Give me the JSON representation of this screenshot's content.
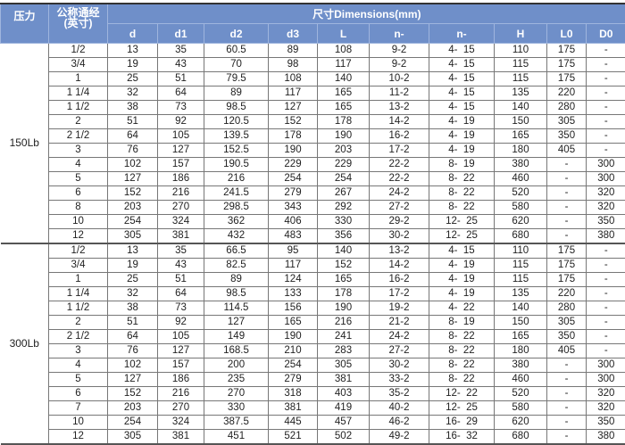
{
  "header": {
    "pressure": "压力",
    "nominal_line1": "公称通经",
    "nominal_line2": "(英寸)",
    "dimensions": "尺寸Dimensions(mm)",
    "columns": [
      "d",
      "d1",
      "d2",
      "d3",
      "L",
      "n-",
      "n-",
      "H",
      "L0",
      "D0"
    ]
  },
  "groups": [
    {
      "pressure": "150Lb",
      "rows": [
        [
          "1/2",
          "13",
          "35",
          "60.5",
          "89",
          "108",
          "9-2",
          "4-  15",
          "110",
          "175",
          "-"
        ],
        [
          "3/4",
          "19",
          "43",
          "70",
          "98",
          "117",
          "9-2",
          "4-  15",
          "115",
          "175",
          "-"
        ],
        [
          "1",
          "25",
          "51",
          "79.5",
          "108",
          "140",
          "10-2",
          "4-  15",
          "115",
          "175",
          "-"
        ],
        [
          "1 1/4",
          "32",
          "64",
          "89",
          "117",
          "165",
          "11-2",
          "4-  15",
          "135",
          "220",
          "-"
        ],
        [
          "1 1/2",
          "38",
          "73",
          "98.5",
          "127",
          "165",
          "13-2",
          "4-  15",
          "140",
          "280",
          "-"
        ],
        [
          "2",
          "51",
          "92",
          "120.5",
          "152",
          "178",
          "14-2",
          "4-  19",
          "150",
          "305",
          "-"
        ],
        [
          "2 1/2",
          "64",
          "105",
          "139.5",
          "178",
          "190",
          "16-2",
          "4-  19",
          "165",
          "350",
          "-"
        ],
        [
          "3",
          "76",
          "127",
          "152.5",
          "190",
          "203",
          "17-2",
          "4-  19",
          "180",
          "405",
          "-"
        ],
        [
          "4",
          "102",
          "157",
          "190.5",
          "229",
          "229",
          "22-2",
          "8-  19",
          "380",
          "-",
          "300"
        ],
        [
          "5",
          "127",
          "186",
          "216",
          "254",
          "254",
          "22-2",
          "8-  22",
          "460",
          "-",
          "300"
        ],
        [
          "6",
          "152",
          "216",
          "241.5",
          "279",
          "267",
          "24-2",
          "8-  22",
          "520",
          "-",
          "320"
        ],
        [
          "8",
          "203",
          "270",
          "298.5",
          "343",
          "292",
          "27-2",
          "8-  22",
          "580",
          "-",
          "320"
        ],
        [
          "10",
          "254",
          "324",
          "362",
          "406",
          "330",
          "29-2",
          "12-  25",
          "620",
          "-",
          "350"
        ],
        [
          "12",
          "305",
          "381",
          "432",
          "483",
          "356",
          "30-2",
          "12-  25",
          "680",
          "-",
          "380"
        ]
      ]
    },
    {
      "pressure": "300Lb",
      "rows": [
        [
          "1/2",
          "13",
          "35",
          "66.5",
          "95",
          "140",
          "13-2",
          "4-  15",
          "110",
          "175",
          "-"
        ],
        [
          "3/4",
          "19",
          "43",
          "82.5",
          "117",
          "152",
          "14-2",
          "4-  19",
          "115",
          "175",
          "-"
        ],
        [
          "1",
          "25",
          "51",
          "89",
          "124",
          "165",
          "16-2",
          "4-  19",
          "115",
          "175",
          "-"
        ],
        [
          "1 1/4",
          "32",
          "64",
          "98.5",
          "133",
          "178",
          "17-2",
          "4-  19",
          "135",
          "220",
          "-"
        ],
        [
          "1 1/2",
          "38",
          "73",
          "114.5",
          "156",
          "190",
          "19-2",
          "4-  22",
          "140",
          "280",
          "-"
        ],
        [
          "2",
          "51",
          "92",
          "127",
          "165",
          "216",
          "21-2",
          "8-  19",
          "150",
          "305",
          "-"
        ],
        [
          "2 1/2",
          "64",
          "105",
          "149",
          "190",
          "241",
          "24-2",
          "8-  22",
          "165",
          "350",
          "-"
        ],
        [
          "3",
          "76",
          "127",
          "168.5",
          "210",
          "283",
          "27-2",
          "8-  22",
          "180",
          "405",
          "-"
        ],
        [
          "4",
          "102",
          "157",
          "200",
          "254",
          "305",
          "30-2",
          "8-  22",
          "380",
          "-",
          "300"
        ],
        [
          "5",
          "127",
          "186",
          "235",
          "279",
          "381",
          "33-2",
          "8-  22",
          "460",
          "-",
          "300"
        ],
        [
          "6",
          "152",
          "216",
          "270",
          "318",
          "403",
          "35-2",
          "12-  22",
          "520",
          "-",
          "320"
        ],
        [
          "7",
          "203",
          "270",
          "330",
          "381",
          "419",
          "40-2",
          "12-  25",
          "580",
          "-",
          "320"
        ],
        [
          "10",
          "254",
          "324",
          "387.5",
          "445",
          "457",
          "46-2",
          "16-  29",
          "620",
          "-",
          "350"
        ],
        [
          "12",
          "305",
          "381",
          "451",
          "521",
          "502",
          "49-2",
          "16-  32",
          "680",
          "-",
          "380"
        ]
      ]
    }
  ]
}
